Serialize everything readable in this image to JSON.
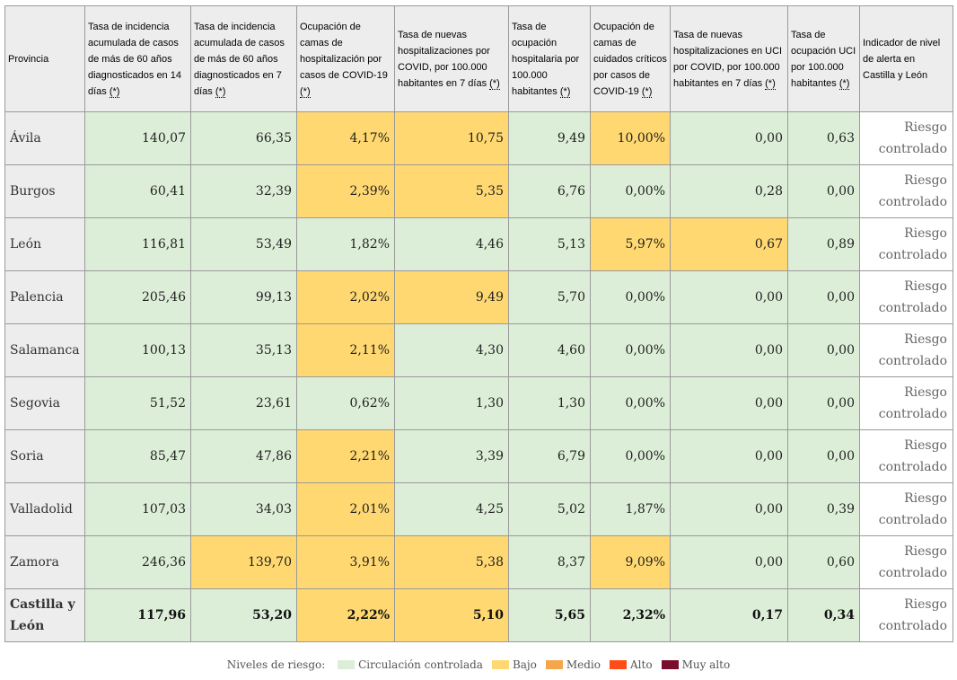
{
  "table": {
    "headers": [
      {
        "text": "Provincia",
        "note": ""
      },
      {
        "text": "Tasa de incidencia acumulada de casos de más de 60 años diagnosticados en 14 días",
        "note": "(*)"
      },
      {
        "text": "Tasa de incidencia acumulada de casos de más de 60 años diagnosticados en 7 días",
        "note": "(*)"
      },
      {
        "text": "Ocupación de camas de hospitalización por casos de COVID-19",
        "note": "(*)"
      },
      {
        "text": "Tasa de nuevas hospitalizaciones por COVID, por 100.000 habitantes en 7 días",
        "note": "(*)"
      },
      {
        "text": "Tasa de ocupación hospitalaria por 100.000 habitantes",
        "note": "(*)"
      },
      {
        "text": "Ocupación de camas de cuidados críticos por casos de COVID-19",
        "note": "(*)"
      },
      {
        "text": "Tasa de nuevas hospitalizaciones en UCI por COVID, por 100.000 habitantes en 7 días",
        "note": "(*)"
      },
      {
        "text": "Tasa de ocupación UCI por 100.000 habitantes",
        "note": "(*)"
      },
      {
        "text": "Indicador de nivel de alerta en Castilla y León",
        "note": ""
      }
    ],
    "rows": [
      {
        "province": "Ávila",
        "values": [
          "140,07",
          "66,35",
          "4,17%",
          "10,75",
          "9,49",
          "10,00%",
          "0,00",
          "0,63"
        ],
        "levels": [
          "circ",
          "circ",
          "bajo",
          "bajo",
          "circ",
          "bajo",
          "circ",
          "circ"
        ],
        "indicator": "Riesgo controlado"
      },
      {
        "province": "Burgos",
        "values": [
          "60,41",
          "32,39",
          "2,39%",
          "5,35",
          "6,76",
          "0,00%",
          "0,28",
          "0,00"
        ],
        "levels": [
          "circ",
          "circ",
          "bajo",
          "bajo",
          "circ",
          "circ",
          "circ",
          "circ"
        ],
        "indicator": "Riesgo controlado"
      },
      {
        "province": "León",
        "values": [
          "116,81",
          "53,49",
          "1,82%",
          "4,46",
          "5,13",
          "5,97%",
          "0,67",
          "0,89"
        ],
        "levels": [
          "circ",
          "circ",
          "circ",
          "circ",
          "circ",
          "bajo",
          "bajo",
          "circ"
        ],
        "indicator": "Riesgo controlado"
      },
      {
        "province": "Palencia",
        "values": [
          "205,46",
          "99,13",
          "2,02%",
          "9,49",
          "5,70",
          "0,00%",
          "0,00",
          "0,00"
        ],
        "levels": [
          "circ",
          "circ",
          "bajo",
          "bajo",
          "circ",
          "circ",
          "circ",
          "circ"
        ],
        "indicator": "Riesgo controlado"
      },
      {
        "province": "Salamanca",
        "values": [
          "100,13",
          "35,13",
          "2,11%",
          "4,30",
          "4,60",
          "0,00%",
          "0,00",
          "0,00"
        ],
        "levels": [
          "circ",
          "circ",
          "bajo",
          "circ",
          "circ",
          "circ",
          "circ",
          "circ"
        ],
        "indicator": "Riesgo controlado"
      },
      {
        "province": "Segovia",
        "values": [
          "51,52",
          "23,61",
          "0,62%",
          "1,30",
          "1,30",
          "0,00%",
          "0,00",
          "0,00"
        ],
        "levels": [
          "circ",
          "circ",
          "circ",
          "circ",
          "circ",
          "circ",
          "circ",
          "circ"
        ],
        "indicator": "Riesgo controlado"
      },
      {
        "province": "Soria",
        "values": [
          "85,47",
          "47,86",
          "2,21%",
          "3,39",
          "6,79",
          "0,00%",
          "0,00",
          "0,00"
        ],
        "levels": [
          "circ",
          "circ",
          "bajo",
          "circ",
          "circ",
          "circ",
          "circ",
          "circ"
        ],
        "indicator": "Riesgo controlado"
      },
      {
        "province": "Valladolid",
        "values": [
          "107,03",
          "34,03",
          "2,01%",
          "4,25",
          "5,02",
          "1,87%",
          "0,00",
          "0,39"
        ],
        "levels": [
          "circ",
          "circ",
          "bajo",
          "circ",
          "circ",
          "circ",
          "circ",
          "circ"
        ],
        "indicator": "Riesgo controlado"
      },
      {
        "province": "Zamora",
        "values": [
          "246,36",
          "139,70",
          "3,91%",
          "5,38",
          "8,37",
          "9,09%",
          "0,00",
          "0,60"
        ],
        "levels": [
          "circ",
          "bajo",
          "bajo",
          "bajo",
          "circ",
          "bajo",
          "circ",
          "circ"
        ],
        "indicator": "Riesgo controlado"
      }
    ],
    "total": {
      "province": "Castilla y León",
      "values": [
        "117,96",
        "53,20",
        "2,22%",
        "5,10",
        "5,65",
        "2,32%",
        "0,17",
        "0,34"
      ],
      "levels": [
        "circ",
        "circ",
        "bajo",
        "bajo",
        "circ",
        "circ",
        "circ",
        "circ"
      ],
      "indicator": "Riesgo controlado"
    }
  },
  "legend": {
    "title": "Niveles de riesgo:",
    "items": [
      {
        "label": "Circulación controlada",
        "color": "#ddeed8"
      },
      {
        "label": "Bajo",
        "color": "#ffd871"
      },
      {
        "label": "Medio",
        "color": "#f5a64a"
      },
      {
        "label": "Alto",
        "color": "#ff4b17"
      },
      {
        "label": "Muy alto",
        "color": "#7a0d2b"
      }
    ]
  }
}
